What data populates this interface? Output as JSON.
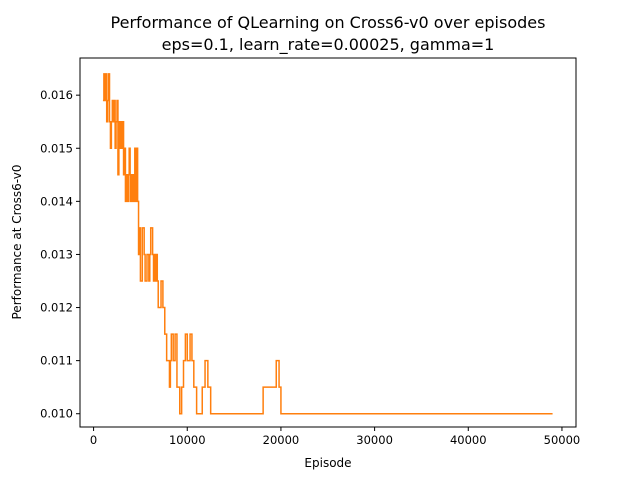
{
  "chart_data": {
    "type": "line",
    "title": "Performance of QLearning on Cross6-v0 over episodes",
    "subtitle": "eps=0.1, learn_rate=0.00025, gamma=1",
    "xlabel": "Episode",
    "ylabel": "Performance at Cross6-v0",
    "xlim": [
      -1450,
      51500
    ],
    "ylim": [
      0.00975,
      0.0167
    ],
    "xticks": [
      0,
      10000,
      20000,
      30000,
      40000,
      50000
    ],
    "xtick_labels": [
      "0",
      "10000",
      "20000",
      "30000",
      "40000",
      "50000"
    ],
    "yticks": [
      0.01,
      0.011,
      0.012,
      0.013,
      0.014,
      0.015,
      0.016
    ],
    "ytick_labels": [
      "0.010",
      "0.011",
      "0.012",
      "0.013",
      "0.014",
      "0.015",
      "0.016"
    ],
    "grid": false,
    "legend": "none",
    "step": "post",
    "series": [
      {
        "color": "#ff7f0e",
        "x": [
          1000,
          1100,
          1200,
          1300,
          1400,
          1500,
          1600,
          1700,
          1800,
          1900,
          2000,
          2100,
          2200,
          2300,
          2400,
          2500,
          2600,
          2700,
          2800,
          2900,
          3000,
          3100,
          3200,
          3300,
          3400,
          3500,
          3600,
          3700,
          3800,
          3900,
          4000,
          4100,
          4200,
          4300,
          4400,
          4500,
          4600,
          4700,
          4800,
          4900,
          5000,
          5200,
          5400,
          5500,
          5700,
          5900,
          6000,
          6100,
          6300,
          6400,
          6500,
          6600,
          6700,
          6800,
          6900,
          7000,
          7200,
          7400,
          7600,
          7800,
          8000,
          8100,
          8200,
          8300,
          8500,
          8700,
          8900,
          9200,
          9400,
          9600,
          9800,
          10000,
          10300,
          10500,
          10700,
          11000,
          11300,
          11600,
          11900,
          12200,
          12500,
          12800,
          13100,
          18100,
          19500,
          19800,
          20000,
          20200,
          21700,
          49000
        ],
        "values": [
          0.0159,
          0.0164,
          0.0159,
          0.0164,
          0.0155,
          0.0159,
          0.0164,
          0.0155,
          0.015,
          0.0155,
          0.0159,
          0.0155,
          0.0159,
          0.015,
          0.0155,
          0.0159,
          0.0145,
          0.0155,
          0.015,
          0.0155,
          0.015,
          0.0155,
          0.0145,
          0.015,
          0.014,
          0.0145,
          0.014,
          0.0145,
          0.015,
          0.014,
          0.0145,
          0.014,
          0.0145,
          0.014,
          0.015,
          0.014,
          0.015,
          0.014,
          0.013,
          0.0135,
          0.0125,
          0.0135,
          0.013,
          0.0125,
          0.013,
          0.0125,
          0.013,
          0.0135,
          0.013,
          0.0125,
          0.013,
          0.0125,
          0.013,
          0.0125,
          0.012,
          0.012,
          0.0125,
          0.012,
          0.0115,
          0.011,
          0.011,
          0.0105,
          0.011,
          0.0115,
          0.011,
          0.0115,
          0.0105,
          0.01,
          0.0105,
          0.011,
          0.0115,
          0.011,
          0.0115,
          0.011,
          0.0105,
          0.01,
          0.01,
          0.0105,
          0.011,
          0.0105,
          0.01,
          0.01,
          0.01,
          0.0105,
          0.011,
          0.0105,
          0.01,
          0.01,
          0.01,
          0.01
        ]
      }
    ]
  }
}
